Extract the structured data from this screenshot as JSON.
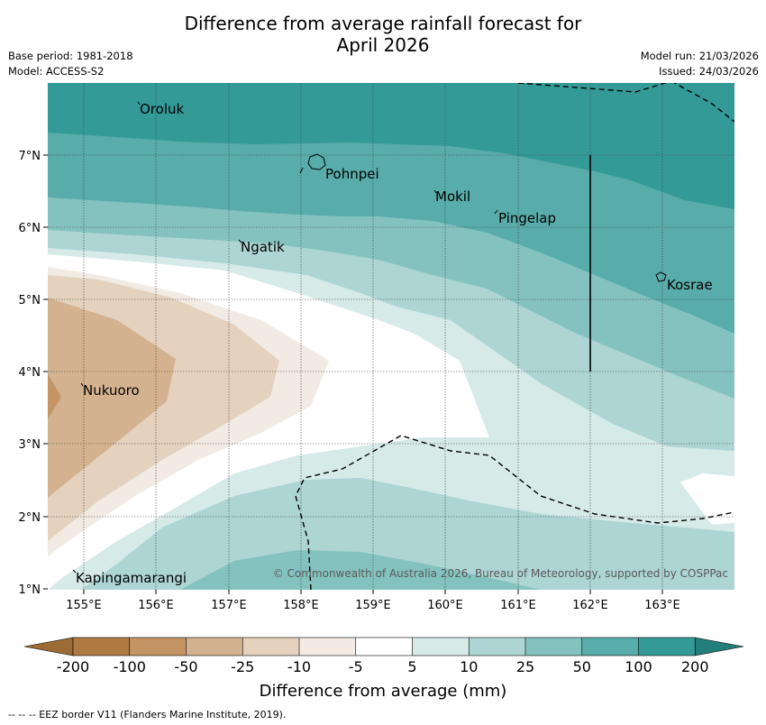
{
  "title_line1": "Difference from average rainfall forecast for",
  "title_line2": "April 2026",
  "base_period": "Base period: 1981-2018",
  "model": "Model: ACCESS-S2",
  "model_run": "Model run: 21/03/2026",
  "issued": "Issued: 24/03/2026",
  "copyright": "© Commonwealth of Australia 2026, Bureau of Meteorology, supported by COSPPac",
  "places": {
    "oroluk": "Oroluk",
    "pohnpei": "Pohnpei",
    "mokil": "Mokil",
    "pingelap": "Pingelap",
    "ngatik": "Ngatik",
    "kosrae": "Kosrae",
    "nukuoro": "Nukuoro",
    "kapingamarangi": "Kapingamarangi"
  },
  "lat_labels": [
    "7°N",
    "6°N",
    "5°N",
    "4°N",
    "3°N",
    "2°N",
    "1°N"
  ],
  "lon_labels": [
    "155°E",
    "156°E",
    "157°E",
    "158°E",
    "159°E",
    "160°E",
    "161°E",
    "162°E",
    "163°E"
  ],
  "colorbar": {
    "labels": [
      "-200",
      "-100",
      "-50",
      "-25",
      "-10",
      "-5",
      "5",
      "10",
      "25",
      "50",
      "100",
      "200"
    ],
    "colors": [
      "#9d6c35",
      "#b07a44",
      "#c49465",
      "#d4b28f",
      "#e4d2bf",
      "#f1ebe4",
      "#ffffff",
      "#d6eae8",
      "#acd5d3",
      "#84c2c0",
      "#58acaa",
      "#339a97",
      "#247e7b"
    ],
    "title": "Difference from average (mm)"
  },
  "footer": "--  --  -- EEZ border V11 (Flanders Marine Institute, 2019)."
}
